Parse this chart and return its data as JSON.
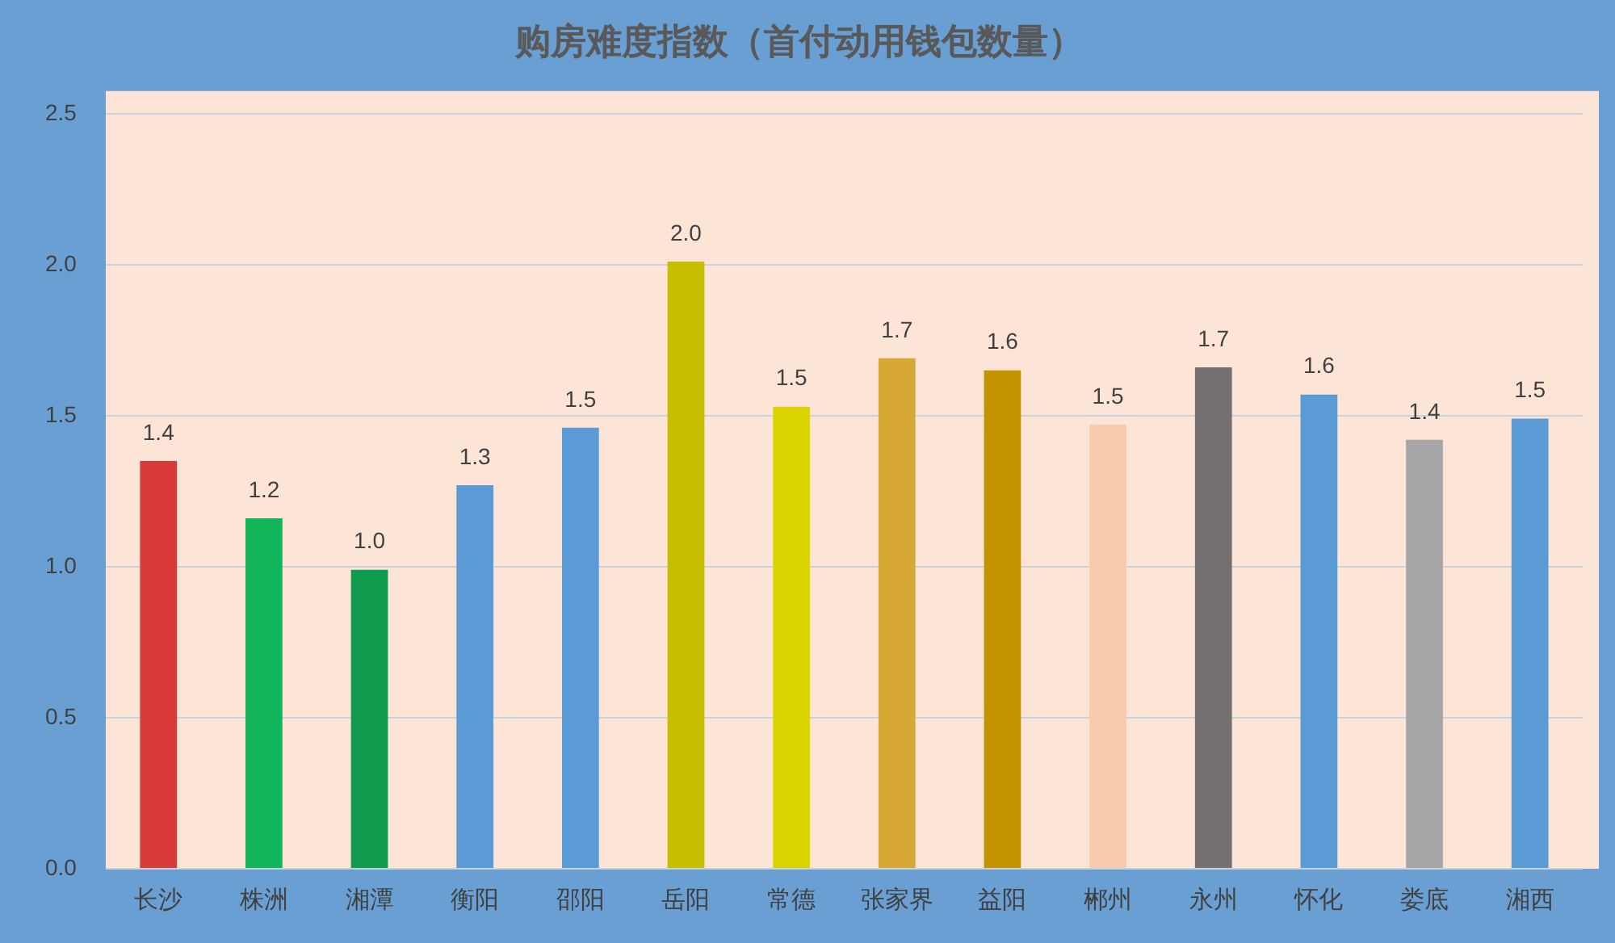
{
  "chart_data": {
    "type": "bar",
    "title": "购房难度指数（首付动用钱包数量）",
    "categories": [
      "长沙",
      "株洲",
      "湘潭",
      "衡阳",
      "邵阳",
      "岳阳",
      "常德",
      "张家界",
      "益阳",
      "郴州",
      "永州",
      "怀化",
      "娄底",
      "湘西"
    ],
    "values": [
      1.35,
      1.16,
      0.99,
      1.27,
      1.46,
      2.01,
      1.53,
      1.69,
      1.65,
      1.47,
      1.66,
      1.57,
      1.42,
      1.49
    ],
    "value_labels": [
      "1.4",
      "1.2",
      "1.0",
      "1.3",
      "1.5",
      "2.0",
      "1.5",
      "1.7",
      "1.6",
      "1.5",
      "1.7",
      "1.6",
      "1.4",
      "1.5"
    ],
    "colors": [
      "#d83a3a",
      "#12b45a",
      "#0f9a4e",
      "#5b9bd5",
      "#5b9bd5",
      "#c8be00",
      "#dcd400",
      "#d8a834",
      "#c49400",
      "#f8cbad",
      "#767171",
      "#5b9bd5",
      "#a6a6a6",
      "#5b9bd5"
    ],
    "ylim": [
      0,
      2.5
    ],
    "yticks": [
      {
        "value": 0,
        "label": "0.0"
      },
      {
        "value": 0.5,
        "label": "0.5"
      },
      {
        "value": 1,
        "label": "1.0"
      },
      {
        "value": 1.5,
        "label": "1.5"
      },
      {
        "value": 2,
        "label": "2.0"
      },
      {
        "value": 2.5,
        "label": "2.5"
      }
    ],
    "grid": "y"
  }
}
